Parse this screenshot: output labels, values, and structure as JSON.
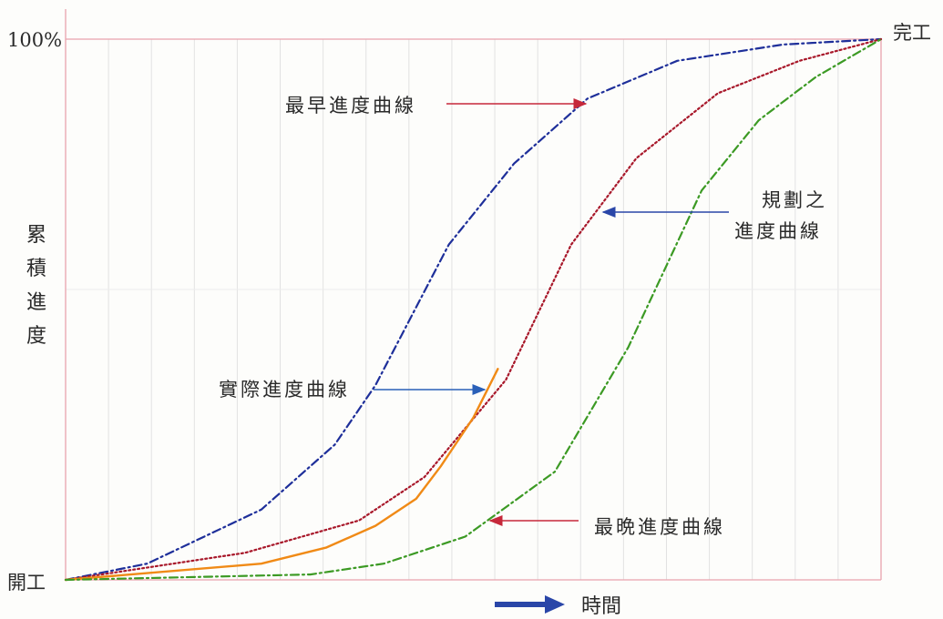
{
  "chart_data": {
    "type": "line",
    "title": "",
    "xlabel": "時間",
    "ylabel": "累積進度",
    "y_tick_top": "100%",
    "x_start_label": "開工",
    "x_end_label": "完工",
    "xlim": [
      0,
      1
    ],
    "ylim": [
      0,
      1
    ],
    "grid": true,
    "series": [
      {
        "name": "最早進度曲線",
        "color": "#1e2f9a",
        "style": "dashdot",
        "x": [
          0,
          0.1,
          0.24,
          0.33,
          0.38,
          0.47,
          0.55,
          0.64,
          0.75,
          0.88,
          1.0
        ],
        "y": [
          0,
          0.03,
          0.13,
          0.25,
          0.36,
          0.62,
          0.77,
          0.89,
          0.96,
          0.99,
          1.0
        ]
      },
      {
        "name": "規劃之進度曲線",
        "color": "#a8182a",
        "style": "dotted",
        "x": [
          0,
          0.22,
          0.36,
          0.44,
          0.54,
          0.62,
          0.7,
          0.8,
          0.9,
          1.0
        ],
        "y": [
          0,
          0.05,
          0.11,
          0.19,
          0.37,
          0.62,
          0.78,
          0.9,
          0.96,
          1.0
        ]
      },
      {
        "name": "實際進度曲線",
        "color": "#f08a16",
        "style": "solid",
        "x": [
          0,
          0.24,
          0.32,
          0.38,
          0.43,
          0.46,
          0.5,
          0.53
        ],
        "y": [
          0,
          0.03,
          0.06,
          0.1,
          0.15,
          0.21,
          0.3,
          0.39
        ]
      },
      {
        "name": "最晩進度曲線",
        "color": "#3c9a24",
        "style": "dashdot",
        "x": [
          0,
          0.3,
          0.39,
          0.49,
          0.6,
          0.69,
          0.78,
          0.85,
          0.92,
          1.0
        ],
        "y": [
          0,
          0.01,
          0.03,
          0.08,
          0.2,
          0.43,
          0.72,
          0.85,
          0.93,
          1.0
        ]
      }
    ],
    "annotations": [
      {
        "text": "最早進度曲線",
        "series": 0,
        "arrow_color": "#c6283a"
      },
      {
        "text_lines": [
          "規劃之",
          "進度曲線"
        ],
        "series": 1,
        "arrow_color": "#2a46a8"
      },
      {
        "text": "實際進度曲線",
        "series": 2,
        "arrow_color": "#2a60b8"
      },
      {
        "text": "最晩進度曲線",
        "series": 3,
        "arrow_color": "#c6283a"
      }
    ]
  }
}
